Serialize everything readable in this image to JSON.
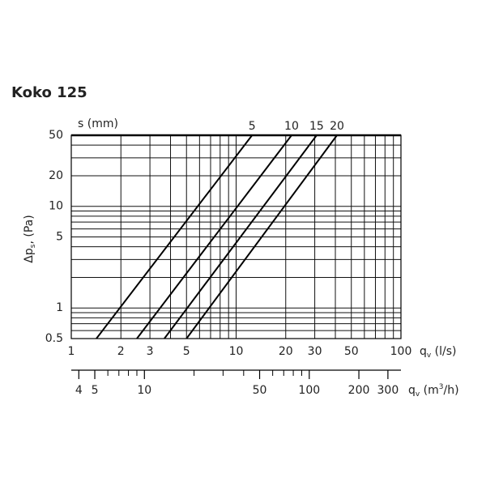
{
  "chart_data": {
    "type": "line",
    "title": "Koko 125",
    "legend_title": "s (mm)",
    "xlabel": [
      "q",
      "v",
      " (l/s)"
    ],
    "ylabel": [
      "Δp",
      "s",
      ", (Pa)"
    ],
    "x2label": [
      "q",
      "v",
      " (m",
      "3",
      "/h)"
    ],
    "log_x": true,
    "log_y": true,
    "grid": true,
    "xlim": [
      1,
      100
    ],
    "ylim": [
      0.5,
      50
    ],
    "xticks": [
      1,
      2,
      3,
      5,
      10,
      20,
      30,
      50,
      100
    ],
    "yticks": [
      0.5,
      1,
      5,
      10,
      20,
      50
    ],
    "xgrid": [
      1,
      2,
      3,
      4,
      5,
      6,
      7,
      8,
      9,
      10,
      20,
      30,
      40,
      50,
      60,
      70,
      80,
      90,
      100
    ],
    "ygrid": [
      0.5,
      0.6,
      0.7,
      0.8,
      0.9,
      1,
      2,
      3,
      4,
      5,
      6,
      7,
      8,
      9,
      10,
      20,
      30,
      40,
      50
    ],
    "x2lim": [
      3.6,
      360
    ],
    "x2ticks": [
      4,
      5,
      10,
      50,
      100,
      200,
      300
    ],
    "x2minor": [
      6,
      7,
      8,
      9,
      20,
      30,
      40,
      60,
      70,
      80,
      90
    ],
    "series": [
      {
        "name": "5",
        "color": "#000000",
        "x": [
          1.42,
          12.5
        ],
        "values": [
          0.5,
          50
        ]
      },
      {
        "name": "10",
        "color": "#000000",
        "x": [
          2.5,
          21.7
        ],
        "values": [
          0.5,
          50
        ]
      },
      {
        "name": "15",
        "color": "#000000",
        "x": [
          3.67,
          30.8
        ],
        "values": [
          0.5,
          50
        ]
      },
      {
        "name": "20",
        "color": "#000000",
        "x": [
          5.0,
          40.9
        ],
        "values": [
          0.5,
          50
        ]
      }
    ]
  }
}
